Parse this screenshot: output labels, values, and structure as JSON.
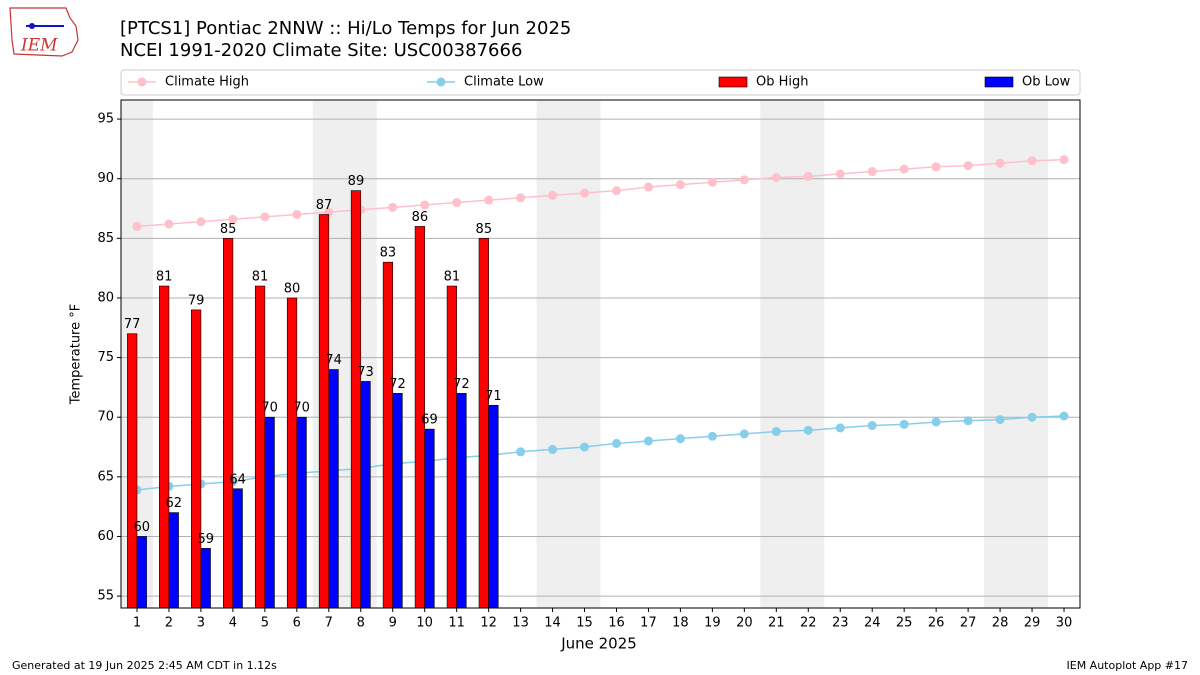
{
  "chart_data": {
    "type": "bar",
    "logo_text": "IEM",
    "title": "[PTCS1] Pontiac 2NNW :: Hi/Lo Temps for Jun 2025",
    "subtitle": "NCEI 1991-2020 Climate Site: USC00387666",
    "xlabel": "June 2025",
    "ylabel": "Temperature °F",
    "footer_left": "Generated at 19 Jun 2025 2:45 AM CDT in 1.12s",
    "footer_right": "IEM Autoplot App #17",
    "x": [
      1,
      2,
      3,
      4,
      5,
      6,
      7,
      8,
      9,
      10,
      11,
      12,
      13,
      14,
      15,
      16,
      17,
      18,
      19,
      20,
      21,
      22,
      23,
      24,
      25,
      26,
      27,
      28,
      29,
      30
    ],
    "xlim": [
      0.5,
      30.5
    ],
    "ylim": [
      54,
      96.6
    ],
    "yticks": [
      55,
      60,
      65,
      70,
      75,
      80,
      85,
      90,
      95
    ],
    "grid": true,
    "shaded_ranges": [
      [
        0.5,
        1.5
      ],
      [
        6.5,
        8.5
      ],
      [
        13.5,
        15.5
      ],
      [
        20.5,
        22.5
      ],
      [
        27.5,
        29.5
      ]
    ],
    "shade_color": "#efefef",
    "series": [
      {
        "name": "Climate High",
        "type": "line",
        "color": "#ffc0cb",
        "values": [
          86.0,
          86.2,
          86.4,
          86.6,
          86.8,
          87.0,
          87.2,
          87.4,
          87.6,
          87.8,
          88.0,
          88.2,
          88.4,
          88.6,
          88.8,
          89.0,
          89.3,
          89.5,
          89.7,
          89.9,
          90.1,
          90.2,
          90.4,
          90.6,
          90.8,
          91.0,
          91.1,
          91.3,
          91.5,
          91.6
        ]
      },
      {
        "name": "Climate Low",
        "type": "line",
        "color": "#87ceeb",
        "values": [
          63.9,
          64.2,
          64.4,
          64.6,
          65.0,
          65.3,
          65.5,
          65.7,
          66.1,
          66.3,
          66.6,
          66.8,
          67.1,
          67.3,
          67.5,
          67.8,
          68.0,
          68.2,
          68.4,
          68.6,
          68.8,
          68.9,
          69.1,
          69.3,
          69.4,
          69.6,
          69.7,
          69.8,
          70.0,
          70.1
        ]
      },
      {
        "name": "Ob High",
        "type": "bar",
        "color": "#ff0000",
        "values": [
          77,
          81,
          79,
          85,
          81,
          80,
          87,
          89,
          83,
          86,
          81,
          85,
          null,
          null,
          null,
          null,
          null,
          null,
          null,
          null,
          null,
          null,
          null,
          null,
          null,
          null,
          null,
          null,
          null,
          null
        ]
      },
      {
        "name": "Ob Low",
        "type": "bar",
        "color": "#0000ff",
        "values": [
          60,
          62,
          59,
          64,
          70,
          70,
          74,
          73,
          72,
          69,
          72,
          71,
          null,
          null,
          null,
          null,
          null,
          null,
          null,
          null,
          null,
          null,
          null,
          null,
          null,
          null,
          null,
          null,
          null,
          null
        ]
      }
    ]
  }
}
